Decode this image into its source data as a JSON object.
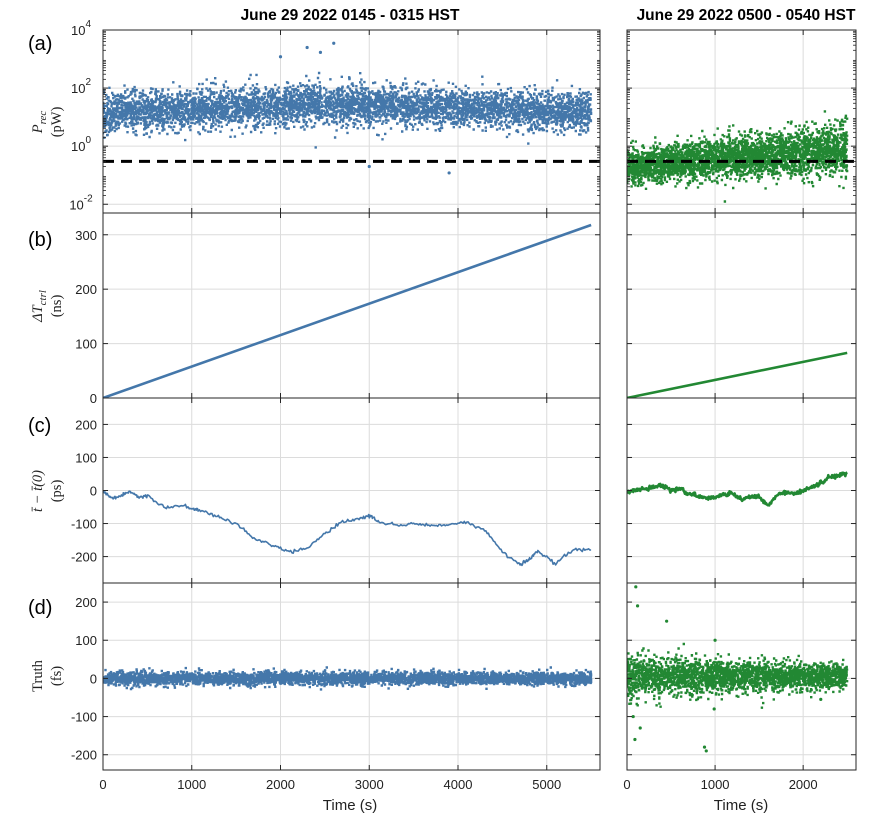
{
  "figure": {
    "column_titles": [
      "June 29 2022 0145 - 0315 HST",
      "June 29 2022 0500 - 0540 HST"
    ],
    "panel_labels": [
      "(a)",
      "(b)",
      "(c)",
      "(d)"
    ],
    "y_labels": [
      {
        "main": "P",
        "sub": "rec",
        "unit": "(pW)"
      },
      {
        "main": "ΔT",
        "sub": "ctrl",
        "unit": "(ns)"
      },
      {
        "main": "t̄ − t̄(0)",
        "sub": "",
        "unit": "(ps)"
      },
      {
        "main": "Truth",
        "sub": "",
        "unit": "(fs)"
      }
    ],
    "x_label": "Time (s)",
    "colors": {
      "left": "#4477aa",
      "right": "#228833",
      "threshold": "#000000",
      "frame": "#262626",
      "grid": "#dcdcdc"
    }
  },
  "chart_data": [
    {
      "type": "scatter",
      "panel": "(a)",
      "column": "left",
      "title": "June 29 2022 0145 - 0315 HST",
      "xlabel": "",
      "ylabel": "P_rec (pW)",
      "yscale": "log",
      "ylim": [
        0.005,
        10000
      ],
      "xlim": [
        0,
        5600
      ],
      "yticks": [
        0.01,
        1,
        100,
        10000
      ],
      "ytick_labels": [
        [
          "10",
          "-2"
        ],
        [
          "10",
          "0"
        ],
        [
          "10",
          "2"
        ],
        [
          "10",
          "4"
        ]
      ],
      "x_range": [
        0,
        5500
      ],
      "median_pw": 15,
      "band_pw": [
        0.8,
        200
      ],
      "outliers": [
        [
          2300,
          2500
        ],
        [
          2600,
          3500
        ],
        [
          2450,
          1700
        ],
        [
          2000,
          1200
        ],
        [
          3900,
          0.12
        ],
        [
          3000,
          0.2
        ]
      ],
      "threshold_pw": 0.3,
      "grid": true
    },
    {
      "type": "scatter",
      "panel": "(a)",
      "column": "right",
      "title": "June 29 2022 0500 - 0540 HST",
      "ylabel": "",
      "yscale": "log",
      "ylim": [
        0.005,
        10000
      ],
      "xlim": [
        0,
        2600
      ],
      "x_range": [
        0,
        2500
      ],
      "median_pw_start": 0.2,
      "median_pw_end": 0.8,
      "band_pw_start": [
        0.05,
        1.5
      ],
      "band_pw_end": [
        0.08,
        10
      ],
      "threshold_pw": 0.3,
      "grid": true
    },
    {
      "type": "line",
      "panel": "(b)",
      "column": "left",
      "ylabel": "ΔT_ctrl (ns)",
      "ylim": [
        0,
        340
      ],
      "xlim": [
        0,
        5600
      ],
      "yticks": [
        0,
        100,
        200,
        300
      ],
      "x": [
        0,
        5500
      ],
      "y": [
        0,
        318
      ],
      "grid": true
    },
    {
      "type": "line",
      "panel": "(b)",
      "column": "right",
      "ylim": [
        0,
        340
      ],
      "xlim": [
        0,
        2600
      ],
      "x": [
        0,
        2500
      ],
      "y": [
        0,
        83
      ],
      "grid": true
    },
    {
      "type": "line",
      "panel": "(c)",
      "column": "left",
      "ylabel": "t̄ − t̄(0) (ps)",
      "ylim": [
        -280,
        280
      ],
      "xlim": [
        0,
        5600
      ],
      "yticks": [
        -200,
        -100,
        0,
        100,
        200
      ],
      "x": [
        0,
        100,
        200,
        300,
        400,
        500,
        700,
        900,
        1000,
        1100,
        1300,
        1500,
        1700,
        1900,
        2100,
        2300,
        2500,
        2700,
        2900,
        3000,
        3100,
        3300,
        3500,
        3700,
        3900,
        4100,
        4300,
        4500,
        4700,
        4800,
        4900,
        5100,
        5300,
        5500
      ],
      "y": [
        0,
        -25,
        -15,
        -5,
        -20,
        -15,
        -50,
        -45,
        -55,
        -60,
        -80,
        -100,
        -145,
        -165,
        -185,
        -175,
        -130,
        -95,
        -85,
        -75,
        -95,
        -105,
        -100,
        -105,
        -105,
        -95,
        -120,
        -185,
        -225,
        -210,
        -185,
        -220,
        -180,
        -180
      ],
      "grid": true
    },
    {
      "type": "line",
      "panel": "(c)",
      "column": "right",
      "ylim": [
        -280,
        280
      ],
      "xlim": [
        0,
        2600
      ],
      "x": [
        0,
        100,
        200,
        300,
        400,
        500,
        600,
        700,
        800,
        900,
        1000,
        1100,
        1200,
        1300,
        1400,
        1500,
        1600,
        1700,
        1800,
        1900,
        2000,
        2100,
        2200,
        2300,
        2400,
        2500
      ],
      "y": [
        -5,
        0,
        5,
        10,
        15,
        0,
        5,
        -10,
        -15,
        -25,
        -20,
        -15,
        -10,
        -25,
        -20,
        -20,
        -45,
        -15,
        -5,
        -10,
        0,
        10,
        20,
        40,
        45,
        55
      ],
      "grid": true
    },
    {
      "type": "scatter",
      "panel": "(d)",
      "column": "left",
      "ylabel": "Truth (fs)",
      "ylim": [
        -240,
        250
      ],
      "xlim": [
        0,
        5600
      ],
      "yticks": [
        -200,
        -100,
        0,
        100,
        200
      ],
      "xticks": [
        0,
        1000,
        2000,
        3000,
        4000,
        5000
      ],
      "xlabel": "Time (s)",
      "x_range": [
        0,
        5500
      ],
      "center_fs": 0,
      "band_fs": [
        -20,
        20
      ],
      "grid": true
    },
    {
      "type": "scatter",
      "panel": "(d)",
      "column": "right",
      "ylim": [
        -240,
        250
      ],
      "xlim": [
        0,
        2600
      ],
      "xticks": [
        0,
        1000,
        2000
      ],
      "xlabel": "Time (s)",
      "x_range": [
        0,
        2500
      ],
      "center_fs": 5,
      "band_fs": [
        -40,
        55
      ],
      "outliers": [
        [
          100,
          240
        ],
        [
          120,
          190
        ],
        [
          70,
          -100
        ],
        [
          90,
          -160
        ],
        [
          150,
          -130
        ],
        [
          880,
          -180
        ],
        [
          900,
          -190
        ],
        [
          990,
          -80
        ],
        [
          2200,
          -55
        ],
        [
          450,
          150
        ],
        [
          1000,
          100
        ]
      ],
      "grid": true
    }
  ]
}
